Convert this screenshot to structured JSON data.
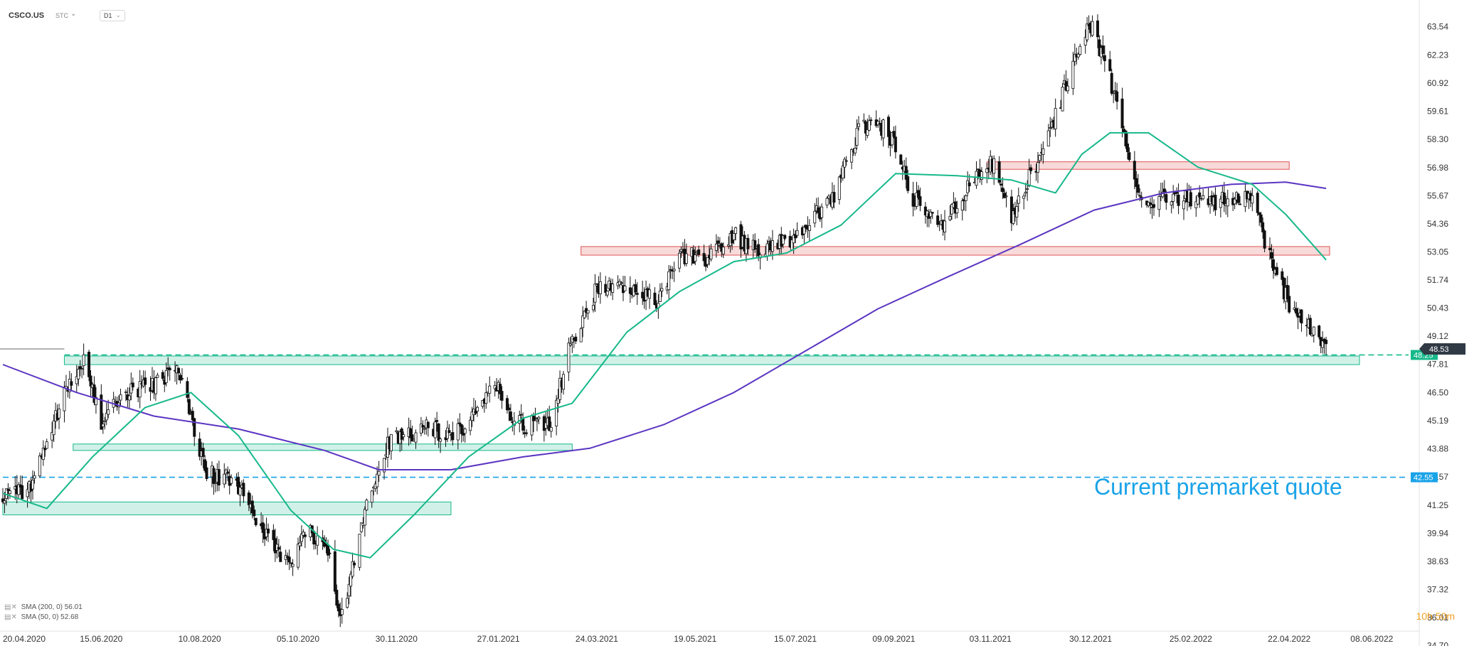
{
  "toolbar": {
    "symbol": "CSCO.US",
    "exchange": "STC",
    "interval": "D1"
  },
  "legend": [
    {
      "icon": "sma-icon",
      "text": "SMA (200, 0) 56.01"
    },
    {
      "icon": "sma-icon",
      "text": "SMA (50, 0) 52.68"
    }
  ],
  "timer": "10h 50m",
  "colors": {
    "candle_up": "#ffffff",
    "candle_down": "#111111",
    "sma200": "#5b35c2",
    "sma50": "#17b88a",
    "support_zone": "#17b88a",
    "resistance_zone": "#e05555",
    "premarket_line": "#1aa3e8",
    "last_price_tag": "#2f3a45"
  },
  "chart_data": {
    "type": "candlestick",
    "symbol": "CSCO.US",
    "timeframe": "D1",
    "ylim": [
      34.5,
      64.3
    ],
    "y_ticks": [
      "63.54",
      "62.23",
      "60.92",
      "59.61",
      "58.30",
      "56.98",
      "55.67",
      "54.36",
      "53.05",
      "51.74",
      "50.43",
      "49.12",
      "47.81",
      "46.50",
      "45.19",
      "43.88",
      "42.57",
      "41.25",
      "39.94",
      "38.63",
      "37.32",
      "36.01",
      "34.70"
    ],
    "x_ticks": [
      "20.04.2020",
      "15.06.2020",
      "10.08.2020",
      "05.10.2020",
      "30.11.2020",
      "27.01.2021",
      "24.03.2021",
      "19.05.2021",
      "15.07.2021",
      "09.09.2021",
      "03.11.2021",
      "30.12.2021",
      "25.02.2022",
      "22.04.2022",
      "08.06.2022"
    ],
    "x_range": [
      "2020-04-20",
      "2022-07-05"
    ],
    "price_path": [
      [
        "2020-04-20",
        41.6
      ],
      [
        "2020-05-05",
        42.0
      ],
      [
        "2020-05-20",
        45.5
      ],
      [
        "2020-06-05",
        48.2
      ],
      [
        "2020-06-15",
        45.2
      ],
      [
        "2020-06-30",
        46.5
      ],
      [
        "2020-07-15",
        46.8
      ],
      [
        "2020-07-29",
        47.8
      ],
      [
        "2020-08-13",
        42.8
      ],
      [
        "2020-08-31",
        42.3
      ],
      [
        "2020-09-15",
        40.2
      ],
      [
        "2020-09-30",
        38.4
      ],
      [
        "2020-10-10",
        40.0
      ],
      [
        "2020-10-22",
        39.3
      ],
      [
        "2020-10-29",
        35.7
      ],
      [
        "2020-11-05",
        38.5
      ],
      [
        "2020-11-13",
        41.5
      ],
      [
        "2020-11-25",
        44.2
      ],
      [
        "2020-12-15",
        44.8
      ],
      [
        "2021-01-05",
        44.6
      ],
      [
        "2021-01-27",
        47.0
      ],
      [
        "2021-02-05",
        45.0
      ],
      [
        "2021-02-25",
        45.0
      ],
      [
        "2021-03-10",
        49.0
      ],
      [
        "2021-03-24",
        51.3
      ],
      [
        "2021-04-10",
        51.5
      ],
      [
        "2021-04-26",
        50.7
      ],
      [
        "2021-05-10",
        53.0
      ],
      [
        "2021-05-24",
        52.6
      ],
      [
        "2021-06-10",
        53.8
      ],
      [
        "2021-06-25",
        53.0
      ],
      [
        "2021-07-15",
        53.8
      ],
      [
        "2021-08-05",
        55.6
      ],
      [
        "2021-08-20",
        58.7
      ],
      [
        "2021-08-31",
        59.1
      ],
      [
        "2021-09-10",
        58.0
      ],
      [
        "2021-09-20",
        55.6
      ],
      [
        "2021-10-05",
        54.3
      ],
      [
        "2021-10-25",
        56.5
      ],
      [
        "2021-11-05",
        57.2
      ],
      [
        "2021-11-15",
        54.5
      ],
      [
        "2021-11-25",
        56.5
      ],
      [
        "2021-12-05",
        58.0
      ],
      [
        "2021-12-20",
        62.0
      ],
      [
        "2021-12-29",
        63.8
      ],
      [
        "2022-01-10",
        61.2
      ],
      [
        "2022-01-18",
        58.5
      ],
      [
        "2022-01-28",
        55.4
      ],
      [
        "2022-02-10",
        55.4
      ],
      [
        "2022-02-28",
        55.6
      ],
      [
        "2022-03-15",
        55.4
      ],
      [
        "2022-03-31",
        55.5
      ],
      [
        "2022-04-10",
        53.2
      ],
      [
        "2022-04-22",
        50.5
      ],
      [
        "2022-05-05",
        49.4
      ],
      [
        "2022-05-13",
        48.53
      ]
    ],
    "series": [
      {
        "name": "SMA (200, 0) 56.01",
        "values": [
          [
            "2020-04-20",
            47.8
          ],
          [
            "2020-06-01",
            46.5
          ],
          [
            "2020-07-15",
            45.4
          ],
          [
            "2020-09-01",
            44.8
          ],
          [
            "2020-10-20",
            43.8
          ],
          [
            "2020-11-20",
            42.9
          ],
          [
            "2020-12-31",
            42.9
          ],
          [
            "2021-02-10",
            43.5
          ],
          [
            "2021-03-20",
            43.9
          ],
          [
            "2021-05-01",
            45.0
          ],
          [
            "2021-06-10",
            46.5
          ],
          [
            "2021-07-20",
            48.4
          ],
          [
            "2021-08-31",
            50.4
          ],
          [
            "2021-10-10",
            51.9
          ],
          [
            "2021-11-20",
            53.4
          ],
          [
            "2022-01-01",
            55.0
          ],
          [
            "2022-02-10",
            55.8
          ],
          [
            "2022-03-20",
            56.2
          ],
          [
            "2022-04-20",
            56.3
          ],
          [
            "2022-05-13",
            56.01
          ]
        ]
      },
      {
        "name": "SMA (50, 0) 52.68",
        "values": [
          [
            "2020-04-20",
            41.8
          ],
          [
            "2020-05-15",
            41.1
          ],
          [
            "2020-06-10",
            43.5
          ],
          [
            "2020-07-10",
            45.8
          ],
          [
            "2020-08-05",
            46.5
          ],
          [
            "2020-09-01",
            44.5
          ],
          [
            "2020-10-01",
            41.0
          ],
          [
            "2020-10-25",
            39.2
          ],
          [
            "2020-11-15",
            38.8
          ],
          [
            "2020-12-10",
            40.8
          ],
          [
            "2021-01-10",
            43.5
          ],
          [
            "2021-02-10",
            45.3
          ],
          [
            "2021-03-10",
            46.0
          ],
          [
            "2021-04-10",
            49.3
          ],
          [
            "2021-05-10",
            51.2
          ],
          [
            "2021-06-10",
            52.6
          ],
          [
            "2021-07-10",
            53.0
          ],
          [
            "2021-08-10",
            54.3
          ],
          [
            "2021-09-10",
            56.7
          ],
          [
            "2021-10-15",
            56.6
          ],
          [
            "2021-11-15",
            56.4
          ],
          [
            "2021-12-10",
            55.8
          ],
          [
            "2021-12-25",
            57.6
          ],
          [
            "2022-01-10",
            58.6
          ],
          [
            "2022-02-01",
            58.6
          ],
          [
            "2022-03-01",
            57.0
          ],
          [
            "2022-04-01",
            56.2
          ],
          [
            "2022-04-20",
            54.8
          ],
          [
            "2022-05-13",
            52.68
          ]
        ]
      }
    ],
    "zones": [
      {
        "kind": "resistance",
        "from": "2021-03-15",
        "to": "2022-05-15",
        "low": 52.9,
        "high": 53.3
      },
      {
        "kind": "resistance",
        "from": "2021-11-01",
        "to": "2022-04-22",
        "low": 56.9,
        "high": 57.25
      },
      {
        "kind": "support",
        "from": "2020-05-25",
        "to": "2022-06-01",
        "low": 47.8,
        "high": 48.2
      },
      {
        "kind": "support",
        "from": "2020-05-30",
        "to": "2021-03-10",
        "low": 43.8,
        "high": 44.1
      },
      {
        "kind": "support",
        "from": "2020-04-20",
        "to": "2020-12-31",
        "low": 40.8,
        "high": 41.4
      }
    ],
    "hlines": [
      {
        "value": 48.25,
        "label": "48.25",
        "style": "dashed",
        "color": "#17b88a",
        "from": "2020-05-25"
      },
      {
        "value": 42.55,
        "label": "42.55",
        "style": "dashed",
        "color": "#1aa3e8",
        "from": "2020-04-20"
      }
    ],
    "last_price": {
      "value": 48.53,
      "label": "48.53"
    },
    "annotation": "Current premarket quote",
    "grid": false
  }
}
